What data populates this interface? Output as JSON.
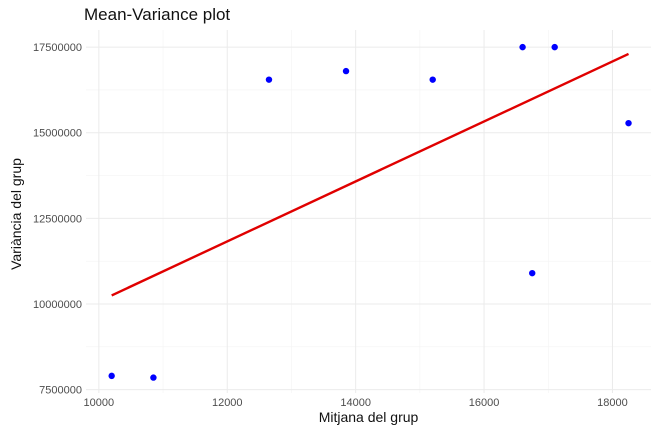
{
  "chart_data": {
    "type": "scatter",
    "title": "Mean-Variance plot",
    "xlabel": "Mitjana del grup",
    "ylabel": "Variància del grup",
    "xlim": [
      9800,
      18600
    ],
    "ylim": [
      7400000,
      18000000
    ],
    "x_ticks": [
      10000,
      12000,
      14000,
      16000,
      18000
    ],
    "x_tick_labels": [
      "10000",
      "12000",
      "14000",
      "16000",
      "18000"
    ],
    "y_ticks": [
      7500000,
      10000000,
      12500000,
      15000000,
      17500000
    ],
    "y_tick_labels": [
      "7500000",
      "10000000",
      "12500000",
      "15000000",
      "17500000"
    ],
    "grid": true,
    "legend": "none",
    "points": {
      "color": "#0000ff",
      "x": [
        10200,
        10850,
        12650,
        13850,
        15200,
        16600,
        16750,
        17100,
        18250
      ],
      "y": [
        7900000,
        7850000,
        16550000,
        16800000,
        16550000,
        17500000,
        10900000,
        17500000,
        15280000
      ]
    },
    "trend_line": {
      "color": "#e00000",
      "x": [
        10200,
        18250
      ],
      "y": [
        10250000,
        17300000
      ]
    }
  }
}
